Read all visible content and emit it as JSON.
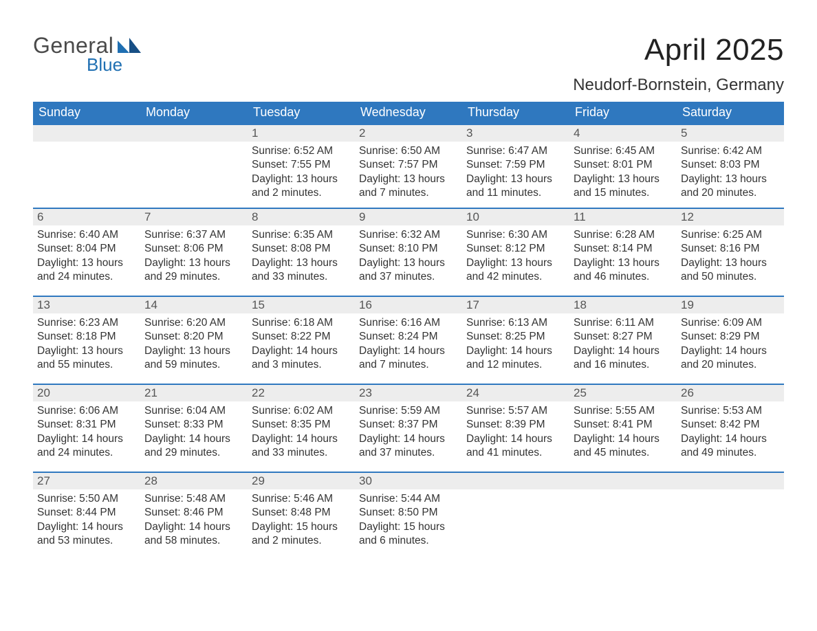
{
  "brand": {
    "general": "General",
    "blue": "Blue"
  },
  "title": "April 2025",
  "location": "Neudorf-Bornstein, Germany",
  "colors": {
    "header_bg": "#2f78bf",
    "header_text": "#ffffff",
    "day_header_bg": "#ededed",
    "day_header_border": "#2f78bf",
    "body_bg": "#ffffff",
    "text": "#333333",
    "logo_general": "#4a4a4a",
    "logo_blue": "#1f6fb2"
  },
  "columns": [
    "Sunday",
    "Monday",
    "Tuesday",
    "Wednesday",
    "Thursday",
    "Friday",
    "Saturday"
  ],
  "weeks": [
    [
      null,
      null,
      {
        "n": "1",
        "sr": "6:52 AM",
        "ss": "7:55 PM",
        "dl": "13 hours and 2 minutes."
      },
      {
        "n": "2",
        "sr": "6:50 AM",
        "ss": "7:57 PM",
        "dl": "13 hours and 7 minutes."
      },
      {
        "n": "3",
        "sr": "6:47 AM",
        "ss": "7:59 PM",
        "dl": "13 hours and 11 minutes."
      },
      {
        "n": "4",
        "sr": "6:45 AM",
        "ss": "8:01 PM",
        "dl": "13 hours and 15 minutes."
      },
      {
        "n": "5",
        "sr": "6:42 AM",
        "ss": "8:03 PM",
        "dl": "13 hours and 20 minutes."
      }
    ],
    [
      {
        "n": "6",
        "sr": "6:40 AM",
        "ss": "8:04 PM",
        "dl": "13 hours and 24 minutes."
      },
      {
        "n": "7",
        "sr": "6:37 AM",
        "ss": "8:06 PM",
        "dl": "13 hours and 29 minutes."
      },
      {
        "n": "8",
        "sr": "6:35 AM",
        "ss": "8:08 PM",
        "dl": "13 hours and 33 minutes."
      },
      {
        "n": "9",
        "sr": "6:32 AM",
        "ss": "8:10 PM",
        "dl": "13 hours and 37 minutes."
      },
      {
        "n": "10",
        "sr": "6:30 AM",
        "ss": "8:12 PM",
        "dl": "13 hours and 42 minutes."
      },
      {
        "n": "11",
        "sr": "6:28 AM",
        "ss": "8:14 PM",
        "dl": "13 hours and 46 minutes."
      },
      {
        "n": "12",
        "sr": "6:25 AM",
        "ss": "8:16 PM",
        "dl": "13 hours and 50 minutes."
      }
    ],
    [
      {
        "n": "13",
        "sr": "6:23 AM",
        "ss": "8:18 PM",
        "dl": "13 hours and 55 minutes."
      },
      {
        "n": "14",
        "sr": "6:20 AM",
        "ss": "8:20 PM",
        "dl": "13 hours and 59 minutes."
      },
      {
        "n": "15",
        "sr": "6:18 AM",
        "ss": "8:22 PM",
        "dl": "14 hours and 3 minutes."
      },
      {
        "n": "16",
        "sr": "6:16 AM",
        "ss": "8:24 PM",
        "dl": "14 hours and 7 minutes."
      },
      {
        "n": "17",
        "sr": "6:13 AM",
        "ss": "8:25 PM",
        "dl": "14 hours and 12 minutes."
      },
      {
        "n": "18",
        "sr": "6:11 AM",
        "ss": "8:27 PM",
        "dl": "14 hours and 16 minutes."
      },
      {
        "n": "19",
        "sr": "6:09 AM",
        "ss": "8:29 PM",
        "dl": "14 hours and 20 minutes."
      }
    ],
    [
      {
        "n": "20",
        "sr": "6:06 AM",
        "ss": "8:31 PM",
        "dl": "14 hours and 24 minutes."
      },
      {
        "n": "21",
        "sr": "6:04 AM",
        "ss": "8:33 PM",
        "dl": "14 hours and 29 minutes."
      },
      {
        "n": "22",
        "sr": "6:02 AM",
        "ss": "8:35 PM",
        "dl": "14 hours and 33 minutes."
      },
      {
        "n": "23",
        "sr": "5:59 AM",
        "ss": "8:37 PM",
        "dl": "14 hours and 37 minutes."
      },
      {
        "n": "24",
        "sr": "5:57 AM",
        "ss": "8:39 PM",
        "dl": "14 hours and 41 minutes."
      },
      {
        "n": "25",
        "sr": "5:55 AM",
        "ss": "8:41 PM",
        "dl": "14 hours and 45 minutes."
      },
      {
        "n": "26",
        "sr": "5:53 AM",
        "ss": "8:42 PM",
        "dl": "14 hours and 49 minutes."
      }
    ],
    [
      {
        "n": "27",
        "sr": "5:50 AM",
        "ss": "8:44 PM",
        "dl": "14 hours and 53 minutes."
      },
      {
        "n": "28",
        "sr": "5:48 AM",
        "ss": "8:46 PM",
        "dl": "14 hours and 58 minutes."
      },
      {
        "n": "29",
        "sr": "5:46 AM",
        "ss": "8:48 PM",
        "dl": "15 hours and 2 minutes."
      },
      {
        "n": "30",
        "sr": "5:44 AM",
        "ss": "8:50 PM",
        "dl": "15 hours and 6 minutes."
      },
      null,
      null,
      null
    ]
  ],
  "labels": {
    "sunrise": "Sunrise: ",
    "sunset": "Sunset: ",
    "daylight": "Daylight: "
  }
}
